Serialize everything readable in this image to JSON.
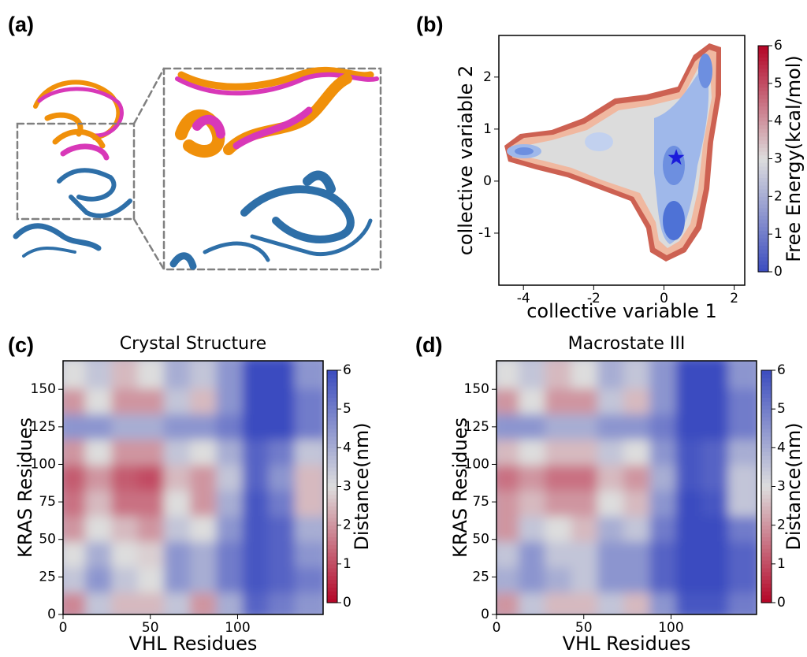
{
  "panel_a": {
    "label": "(a)"
  },
  "chart_data": [
    {
      "type": "contour",
      "label": "(b)",
      "xlabel": "collective variable 1",
      "ylabel": "collective variable 2",
      "colorbar_label": "Free Energy(kcal/mol)",
      "cmap": "coolwarm",
      "clim": [
        0,
        6
      ],
      "cticks": [
        0,
        1,
        2,
        3,
        4,
        5,
        6
      ],
      "xlim": [
        -4.7,
        2.3
      ],
      "ylim": [
        -2.0,
        2.8
      ],
      "xticks": [
        -4,
        -2,
        0,
        2
      ],
      "yticks": [
        -1,
        0,
        1,
        2
      ],
      "star": {
        "x": 0.35,
        "y": 0.45,
        "color": "#1a1adb"
      }
    },
    {
      "type": "heatmap",
      "label": "(c)",
      "title": "Crystal Structure",
      "xlabel": "VHL Residues",
      "ylabel": "KRAS Residues",
      "colorbar_label": "Distance(nm)",
      "cmap": "coolwarm_r",
      "clim": [
        0,
        6
      ],
      "cticks": [
        0,
        1,
        2,
        3,
        4,
        5,
        6
      ],
      "xlim": [
        0,
        149
      ],
      "ylim": [
        0,
        169
      ],
      "xticks": [
        0,
        50,
        100
      ],
      "yticks": [
        0,
        25,
        50,
        75,
        100,
        125,
        150
      ],
      "x": [
        7,
        22,
        37,
        52,
        67,
        82,
        97,
        112,
        127,
        142
      ],
      "y": [
        8,
        25,
        42,
        59,
        76,
        93,
        110,
        127,
        144,
        161
      ],
      "z": [
        [
          1.8,
          3.5,
          2.5,
          2.5,
          3.5,
          2.0,
          4.0,
          5.5,
          5.0,
          4.5
        ],
        [
          3.5,
          4.5,
          3.5,
          3.0,
          4.5,
          4.0,
          5.0,
          5.8,
          5.5,
          5.0
        ],
        [
          3.0,
          4.0,
          3.0,
          2.8,
          4.5,
          4.0,
          5.0,
          5.8,
          5.5,
          4.5
        ],
        [
          2.0,
          3.0,
          2.5,
          2.0,
          3.5,
          3.0,
          4.5,
          5.8,
          5.5,
          4.0
        ],
        [
          1.5,
          2.5,
          1.5,
          1.5,
          3.0,
          2.0,
          4.0,
          5.8,
          5.0,
          2.5
        ],
        [
          1.2,
          2.0,
          1.2,
          1.0,
          2.5,
          2.0,
          3.5,
          5.5,
          4.5,
          2.5
        ],
        [
          2.0,
          3.0,
          2.0,
          2.0,
          3.5,
          3.0,
          4.0,
          5.5,
          5.0,
          3.5
        ],
        [
          4.5,
          4.5,
          4.0,
          4.0,
          4.5,
          4.5,
          5.0,
          6.0,
          6.0,
          5.0
        ],
        [
          2.0,
          3.0,
          2.0,
          2.0,
          3.5,
          2.5,
          4.5,
          6.0,
          6.0,
          5.0
        ],
        [
          3.0,
          3.5,
          2.5,
          3.0,
          4.0,
          3.5,
          4.5,
          6.0,
          6.0,
          4.5
        ]
      ]
    },
    {
      "type": "heatmap",
      "label": "(d)",
      "title": "Macrostate III",
      "xlabel": "VHL Residues",
      "ylabel": "KRAS Residues",
      "colorbar_label": "Distance(nm)",
      "cmap": "coolwarm_r",
      "clim": [
        0,
        6
      ],
      "cticks": [
        0,
        1,
        2,
        3,
        4,
        5,
        6
      ],
      "xlim": [
        0,
        149
      ],
      "ylim": [
        0,
        169
      ],
      "xticks": [
        0,
        50,
        100
      ],
      "yticks": [
        0,
        25,
        50,
        75,
        100,
        125,
        150
      ],
      "x": [
        7,
        22,
        37,
        52,
        67,
        82,
        97,
        112,
        127,
        142
      ],
      "y": [
        8,
        25,
        42,
        59,
        76,
        93,
        110,
        127,
        144,
        161
      ],
      "z": [
        [
          2.0,
          3.5,
          2.5,
          2.5,
          3.5,
          2.5,
          4.5,
          5.8,
          5.8,
          5.0
        ],
        [
          4.0,
          4.5,
          4.0,
          3.5,
          4.5,
          4.5,
          5.5,
          6.0,
          6.0,
          5.5
        ],
        [
          3.5,
          4.5,
          3.5,
          3.5,
          4.5,
          4.5,
          5.5,
          6.0,
          6.0,
          5.5
        ],
        [
          2.0,
          3.5,
          3.0,
          2.5,
          4.0,
          3.5,
          5.0,
          6.0,
          6.0,
          5.0
        ],
        [
          2.0,
          2.5,
          2.0,
          2.0,
          3.0,
          2.5,
          4.5,
          6.0,
          5.8,
          3.5
        ],
        [
          1.5,
          2.0,
          1.5,
          1.5,
          2.5,
          2.0,
          4.0,
          5.8,
          5.5,
          3.5
        ],
        [
          2.5,
          3.0,
          2.5,
          2.5,
          3.5,
          3.0,
          4.5,
          5.8,
          5.5,
          4.0
        ],
        [
          4.5,
          4.5,
          4.0,
          4.0,
          4.5,
          4.5,
          5.0,
          6.0,
          6.0,
          5.0
        ],
        [
          2.0,
          3.0,
          2.0,
          2.0,
          3.5,
          2.5,
          4.5,
          6.0,
          6.0,
          5.0
        ],
        [
          3.0,
          3.5,
          2.5,
          3.0,
          4.0,
          3.5,
          4.5,
          6.0,
          6.0,
          4.5
        ]
      ]
    }
  ]
}
